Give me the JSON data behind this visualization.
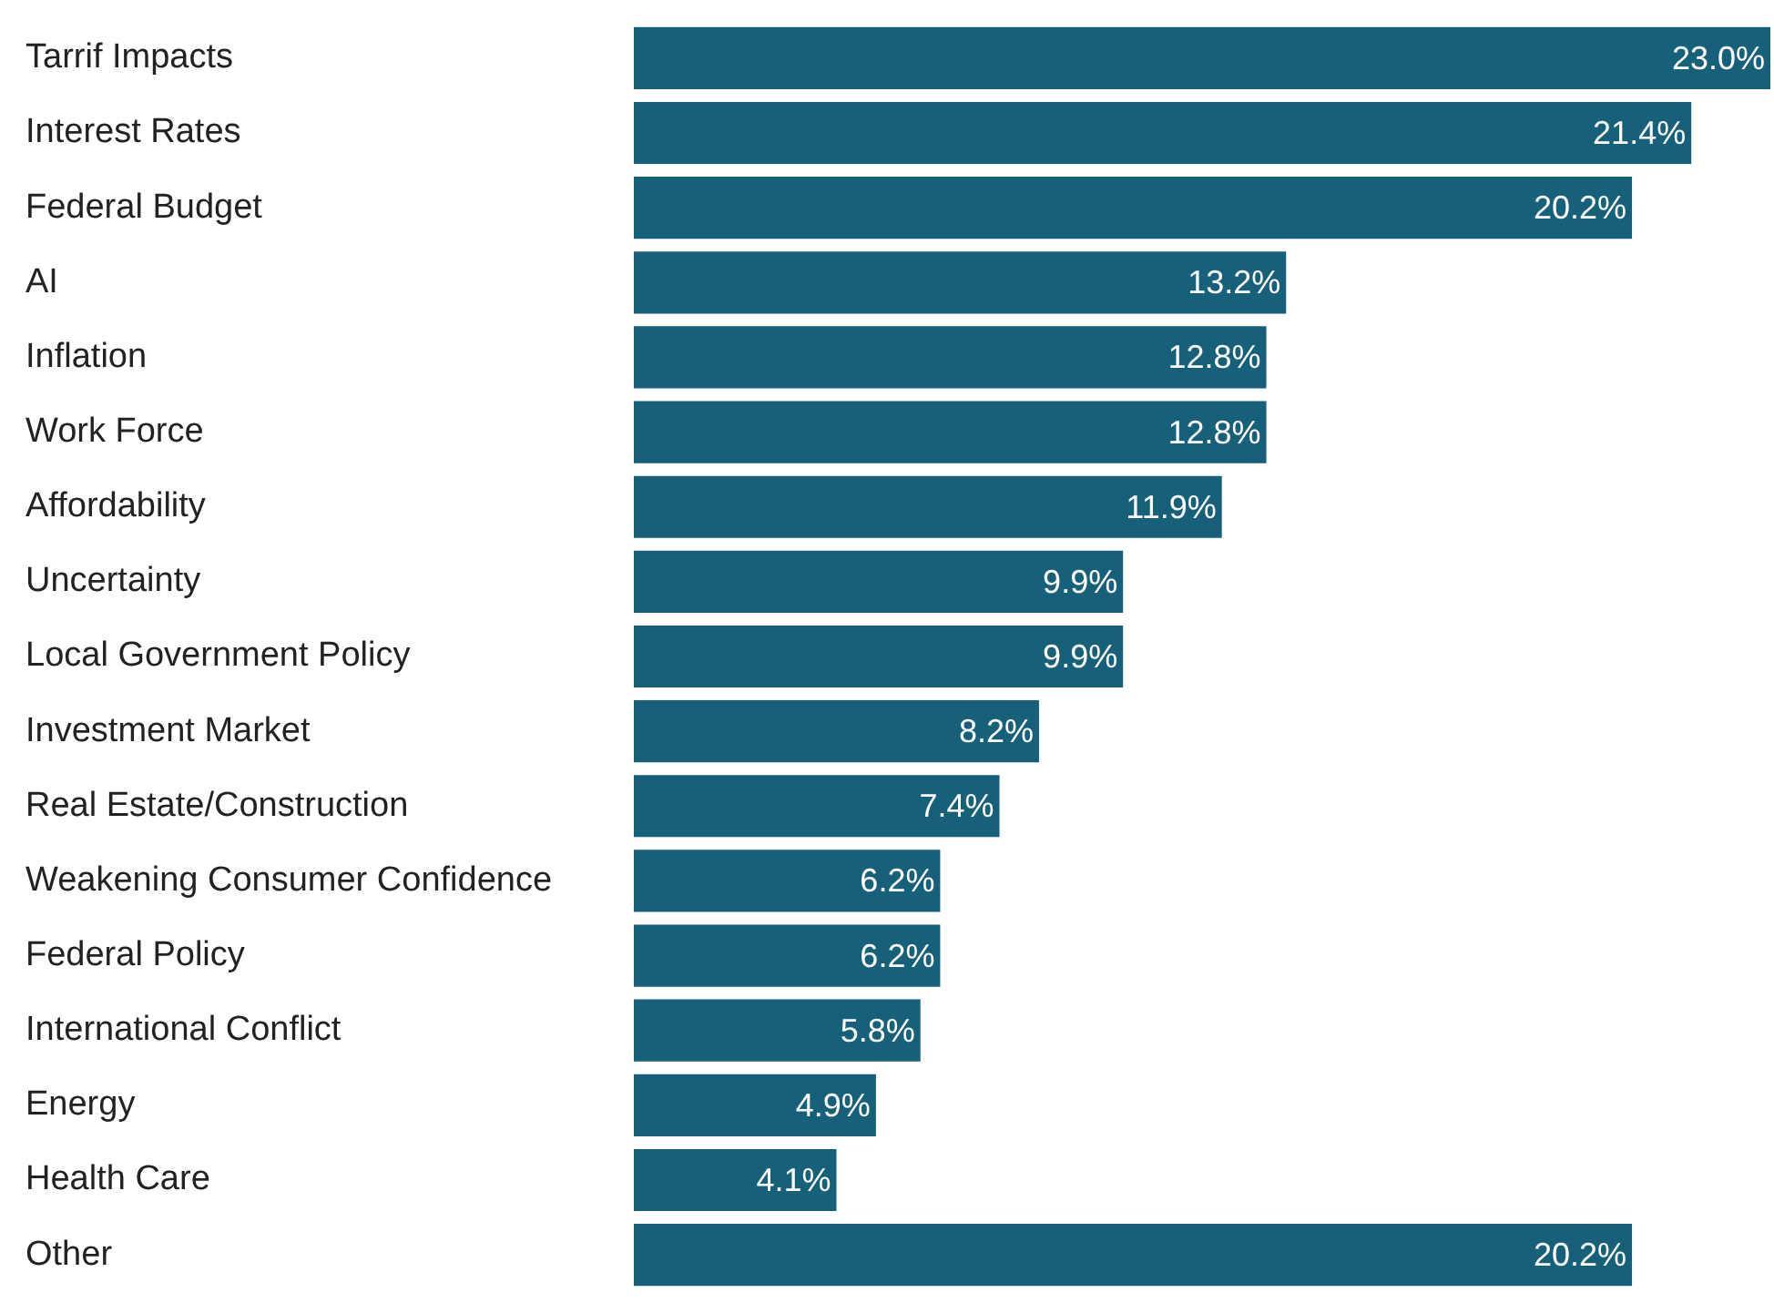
{
  "chart_data": {
    "type": "bar",
    "orientation": "horizontal",
    "categories": [
      "Tarrif Impacts",
      "Interest Rates",
      "Federal Budget",
      "AI",
      "Inflation",
      "Work Force",
      "Affordability",
      "Uncertainty",
      "Local Government Policy",
      "Investment Market",
      "Real Estate/Construction",
      "Weakening Consumer Confidence",
      "Federal Policy",
      "International Conflict",
      "Energy",
      "Health Care",
      "Other"
    ],
    "values": [
      23.0,
      21.4,
      20.2,
      13.2,
      12.8,
      12.8,
      11.9,
      9.9,
      9.9,
      8.2,
      7.4,
      6.2,
      6.2,
      5.8,
      4.9,
      4.1,
      20.2
    ],
    "value_labels": [
      "23.0%",
      "21.4%",
      "20.2%",
      "13.2%",
      "12.8%",
      "12.8%",
      "11.9%",
      "9.9%",
      "9.9%",
      "8.2%",
      "7.4%",
      "6.2%",
      "6.2%",
      "5.8%",
      "4.9%",
      "4.1%",
      "20.2%"
    ],
    "color": "#17607a",
    "xlim": [
      0,
      23
    ]
  }
}
